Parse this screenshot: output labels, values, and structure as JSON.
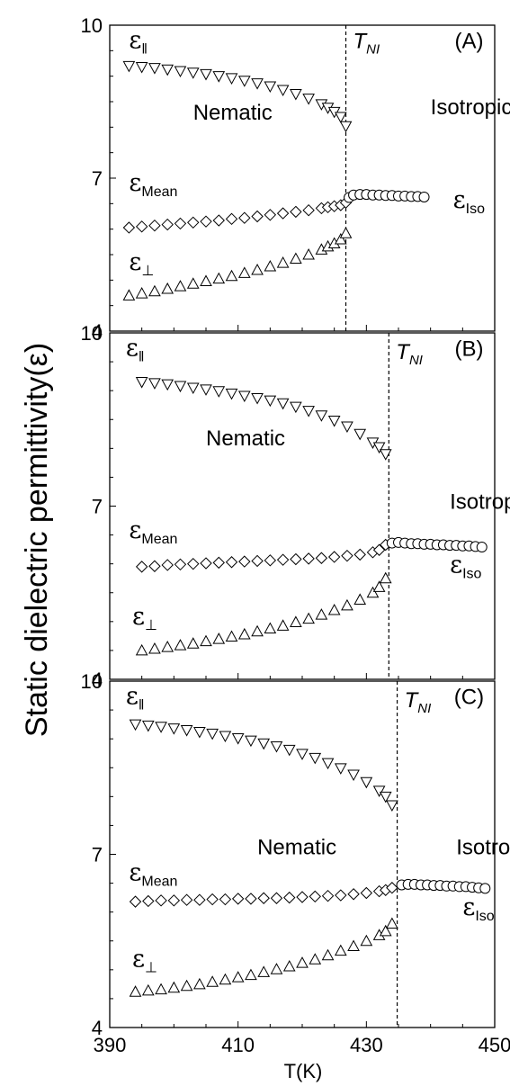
{
  "figure": {
    "ylabel": "Static dielectric permittivity(ε)",
    "xlabel": "T(K)"
  },
  "chart_data": [
    {
      "type": "scatter",
      "panel_label": "(A)",
      "xlim": [
        390,
        450
      ],
      "ylim": [
        4,
        10
      ],
      "x_ticks": [
        "390",
        "410",
        "430",
        "450"
      ],
      "y_ticks": [
        "4",
        "7",
        "10"
      ],
      "transition": {
        "label": "T",
        "sub": "NI",
        "x": 426.8
      },
      "annotations": {
        "nematic": "Nematic",
        "isotropic": "Isotropic"
      },
      "series": [
        {
          "name": "ε‖",
          "label_main": "ε",
          "label_sub": "‖",
          "marker": "triangle-down",
          "x": [
            393,
            395,
            397,
            399,
            401,
            403,
            405,
            407,
            409,
            411,
            413,
            415,
            417,
            419,
            421,
            423,
            424,
            425,
            426,
            426.8
          ],
          "y": [
            9.2,
            9.18,
            9.16,
            9.13,
            9.1,
            9.07,
            9.04,
            9.0,
            8.96,
            8.91,
            8.86,
            8.8,
            8.73,
            8.65,
            8.56,
            8.45,
            8.38,
            8.3,
            8.2,
            8.02
          ]
        },
        {
          "name": "εMean",
          "label_main": "ε",
          "label_sub": "Mean",
          "marker": "diamond",
          "x": [
            393,
            395,
            397,
            399,
            401,
            403,
            405,
            407,
            409,
            411,
            413,
            415,
            417,
            419,
            421,
            423,
            424,
            425,
            426,
            426.8
          ],
          "y": [
            6.03,
            6.05,
            6.07,
            6.09,
            6.11,
            6.13,
            6.15,
            6.17,
            6.2,
            6.22,
            6.25,
            6.28,
            6.31,
            6.34,
            6.37,
            6.41,
            6.43,
            6.45,
            6.47,
            6.52
          ]
        },
        {
          "name": "ε⊥",
          "label_main": "ε",
          "label_sub": "⊥",
          "marker": "triangle-up",
          "x": [
            393,
            395,
            397,
            399,
            401,
            403,
            405,
            407,
            409,
            411,
            413,
            415,
            417,
            419,
            421,
            423,
            424,
            425,
            426,
            426.8
          ],
          "y": [
            4.7,
            4.74,
            4.78,
            4.83,
            4.88,
            4.93,
            4.98,
            5.03,
            5.08,
            5.14,
            5.2,
            5.27,
            5.34,
            5.42,
            5.5,
            5.6,
            5.66,
            5.72,
            5.8,
            5.92
          ]
        },
        {
          "name": "εIso",
          "label_main": "ε",
          "label_sub": "Iso",
          "marker": "circle",
          "x": [
            427.3,
            428,
            429,
            430,
            431,
            432,
            433,
            434,
            435,
            436,
            437,
            438,
            439
          ],
          "y": [
            6.62,
            6.67,
            6.68,
            6.68,
            6.67,
            6.67,
            6.66,
            6.66,
            6.65,
            6.65,
            6.64,
            6.64,
            6.63
          ]
        }
      ]
    },
    {
      "type": "scatter",
      "panel_label": "(B)",
      "xlim": [
        390,
        450
      ],
      "ylim": [
        4,
        10
      ],
      "x_ticks": [
        "390",
        "410",
        "430",
        "450"
      ],
      "y_ticks": [
        "4",
        "7",
        "10"
      ],
      "transition": {
        "label": "T",
        "sub": "NI",
        "x": 433.5
      },
      "annotations": {
        "nematic": "Nematic",
        "isotropic": "Isotropic"
      },
      "series": [
        {
          "name": "ε‖",
          "label_main": "ε",
          "label_sub": "‖",
          "marker": "triangle-down",
          "x": [
            395,
            397,
            399,
            401,
            403,
            405,
            407,
            409,
            411,
            413,
            415,
            417,
            419,
            421,
            423,
            425,
            427,
            429,
            431,
            432,
            433
          ],
          "y": [
            9.15,
            9.13,
            9.11,
            9.08,
            9.05,
            9.02,
            8.99,
            8.95,
            8.91,
            8.87,
            8.83,
            8.78,
            8.72,
            8.65,
            8.57,
            8.48,
            8.38,
            8.25,
            8.1,
            8.02,
            7.9
          ]
        },
        {
          "name": "εMean",
          "label_main": "ε",
          "label_sub": "Mean",
          "marker": "diamond",
          "x": [
            395,
            397,
            399,
            401,
            403,
            405,
            407,
            409,
            411,
            413,
            415,
            417,
            419,
            421,
            423,
            425,
            427,
            429,
            431,
            432,
            433
          ],
          "y": [
            5.95,
            5.96,
            5.98,
            5.99,
            6.0,
            6.01,
            6.02,
            6.03,
            6.04,
            6.05,
            6.06,
            6.07,
            6.08,
            6.09,
            6.1,
            6.12,
            6.14,
            6.16,
            6.2,
            6.24,
            6.33
          ]
        },
        {
          "name": "ε⊥",
          "label_main": "ε",
          "label_sub": "⊥",
          "marker": "triangle-up",
          "x": [
            395,
            397,
            399,
            401,
            403,
            405,
            407,
            409,
            411,
            413,
            415,
            417,
            419,
            421,
            423,
            425,
            427,
            429,
            431,
            432,
            433
          ],
          "y": [
            4.5,
            4.53,
            4.56,
            4.59,
            4.62,
            4.66,
            4.7,
            4.74,
            4.78,
            4.83,
            4.88,
            4.93,
            4.99,
            5.05,
            5.12,
            5.2,
            5.28,
            5.38,
            5.5,
            5.6,
            5.75
          ]
        },
        {
          "name": "εIso",
          "label_main": "ε",
          "label_sub": "Iso",
          "marker": "circle",
          "x": [
            434,
            435,
            436,
            437,
            438,
            439,
            440,
            441,
            442,
            443,
            444,
            445,
            446,
            447,
            448
          ],
          "y": [
            6.36,
            6.37,
            6.36,
            6.35,
            6.35,
            6.34,
            6.34,
            6.33,
            6.33,
            6.32,
            6.32,
            6.31,
            6.31,
            6.3,
            6.29
          ]
        }
      ]
    },
    {
      "type": "scatter",
      "panel_label": "(C)",
      "xlim": [
        390,
        450
      ],
      "ylim": [
        4,
        10
      ],
      "x_ticks": [
        "390",
        "410",
        "430",
        "450"
      ],
      "y_ticks": [
        "4",
        "7",
        "10"
      ],
      "transition": {
        "label": "T",
        "sub": "NI",
        "x": 434.8
      },
      "annotations": {
        "nematic": "Nematic",
        "isotropic": "Isotropic"
      },
      "series": [
        {
          "name": "ε‖",
          "label_main": "ε",
          "label_sub": "‖",
          "marker": "triangle-down",
          "x": [
            394,
            396,
            398,
            400,
            402,
            404,
            406,
            408,
            410,
            412,
            414,
            416,
            418,
            420,
            422,
            424,
            426,
            428,
            430,
            432,
            433,
            434
          ],
          "y": [
            9.25,
            9.23,
            9.21,
            9.18,
            9.15,
            9.12,
            9.09,
            9.05,
            9.01,
            8.97,
            8.92,
            8.87,
            8.81,
            8.74,
            8.67,
            8.58,
            8.49,
            8.38,
            8.25,
            8.1,
            8.0,
            7.85
          ]
        },
        {
          "name": "εMean",
          "label_main": "ε",
          "label_sub": "Mean",
          "marker": "diamond",
          "x": [
            394,
            396,
            398,
            400,
            402,
            404,
            406,
            408,
            410,
            412,
            414,
            416,
            418,
            420,
            422,
            424,
            426,
            428,
            430,
            432,
            433,
            434
          ],
          "y": [
            6.18,
            6.19,
            6.2,
            6.2,
            6.21,
            6.21,
            6.22,
            6.22,
            6.23,
            6.23,
            6.24,
            6.24,
            6.25,
            6.26,
            6.27,
            6.28,
            6.29,
            6.31,
            6.33,
            6.36,
            6.38,
            6.42
          ]
        },
        {
          "name": "ε⊥",
          "label_main": "ε",
          "label_sub": "⊥",
          "marker": "triangle-up",
          "x": [
            394,
            396,
            398,
            400,
            402,
            404,
            406,
            408,
            410,
            412,
            414,
            416,
            418,
            420,
            422,
            424,
            426,
            428,
            430,
            432,
            433,
            434
          ],
          "y": [
            4.62,
            4.64,
            4.66,
            4.69,
            4.72,
            4.75,
            4.79,
            4.83,
            4.87,
            4.91,
            4.96,
            5.01,
            5.06,
            5.12,
            5.18,
            5.25,
            5.33,
            5.41,
            5.5,
            5.6,
            5.67,
            5.8
          ]
        },
        {
          "name": "εIso",
          "label_main": "ε",
          "label_sub": "Iso",
          "marker": "circle",
          "x": [
            435.5,
            436.5,
            437.5,
            438.5,
            439.5,
            440.5,
            441.5,
            442.5,
            443.5,
            444.5,
            445.5,
            446.5,
            447.5,
            448.5
          ],
          "y": [
            6.47,
            6.48,
            6.48,
            6.47,
            6.47,
            6.46,
            6.46,
            6.45,
            6.45,
            6.44,
            6.44,
            6.43,
            6.42,
            6.41
          ]
        }
      ]
    }
  ]
}
